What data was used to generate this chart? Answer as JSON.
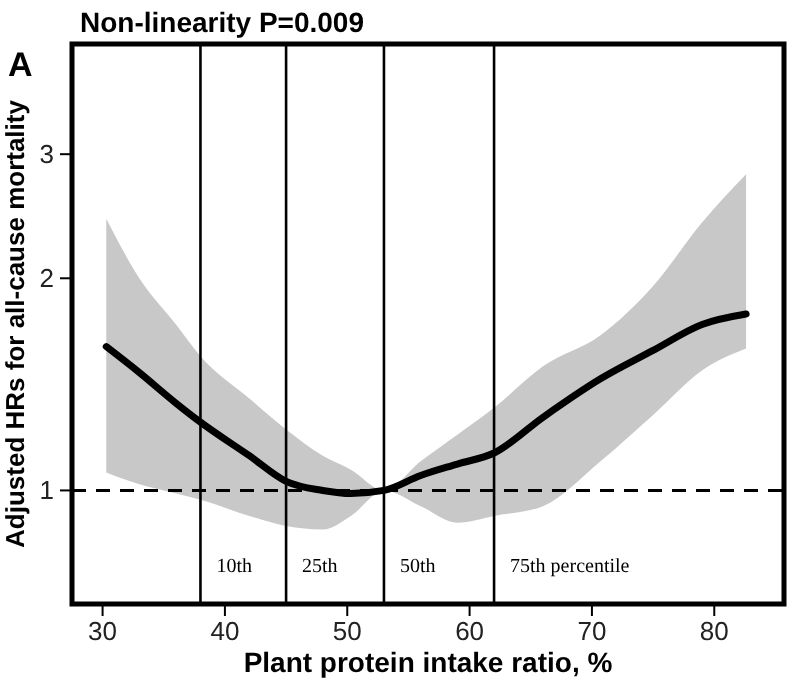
{
  "chart_data": {
    "type": "line",
    "title": "Non-linearity P=0.009",
    "xlabel": "Plant protein intake ratio, %",
    "ylabel": "Adjusted HRs for all-cause mortality",
    "annotations": [
      "A"
    ],
    "x": [
      30.3,
      33,
      36,
      38,
      42,
      45,
      48,
      50.3,
      53,
      56,
      59,
      62,
      66,
      70.7,
      75,
      79,
      82.6
    ],
    "series": [
      {
        "color": "#000000",
        "values": [
          1.6,
          1.47,
          1.33,
          1.25,
          1.12,
          1.03,
          1.0,
          0.99,
          1.0,
          1.05,
          1.09,
          1.13,
          1.27,
          1.44,
          1.58,
          1.72,
          1.78
        ],
        "upper": [
          2.43,
          2.0,
          1.72,
          1.55,
          1.35,
          1.22,
          1.12,
          1.07,
          1.0,
          1.1,
          1.2,
          1.31,
          1.5,
          1.66,
          1.95,
          2.4,
          2.81
        ],
        "lower": [
          1.06,
          1.02,
          0.99,
          0.97,
          0.92,
          0.89,
          0.88,
          0.92,
          1.0,
          0.95,
          0.9,
          0.92,
          0.95,
          1.1,
          1.28,
          1.48,
          1.59
        ]
      }
    ],
    "xlim": [
      27.5,
      85.7
    ],
    "xticks": [
      30,
      40,
      50,
      60,
      70,
      80
    ],
    "ylim": [
      0.69,
      4.3
    ],
    "yticks": [
      1,
      2,
      3
    ],
    "log": "y",
    "grid": false,
    "marker": "none",
    "line_style": "solid",
    "ref_lines": [
      {
        "axis": "y",
        "value": 1,
        "line_style": "dashed"
      },
      {
        "axis": "x",
        "value": 38,
        "label": "10th"
      },
      {
        "axis": "x",
        "value": 45,
        "label": "25th"
      },
      {
        "axis": "x",
        "value": 53,
        "label": "50th"
      },
      {
        "axis": "x",
        "value": 62,
        "label": "75th percentile"
      }
    ]
  }
}
